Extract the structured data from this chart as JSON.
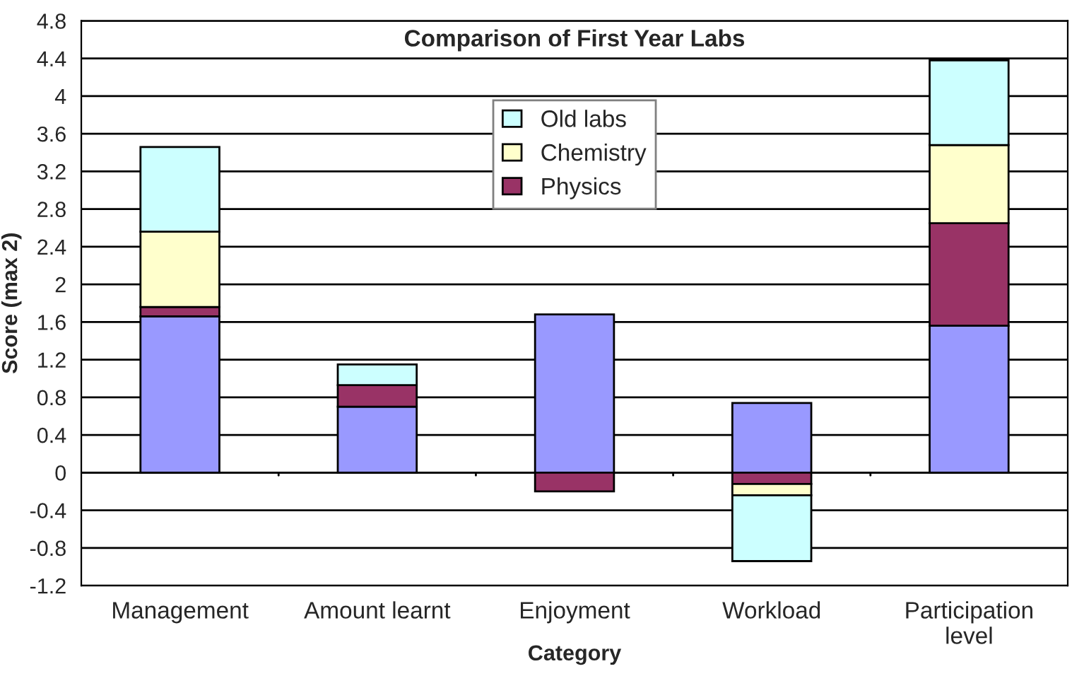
{
  "chart_data": {
    "type": "bar",
    "stacked": true,
    "title": "Comparison of First Year Labs",
    "xlabel": "Category",
    "ylabel": "Score (max 2)",
    "categories": [
      "Management",
      "Amount learnt",
      "Enjoyment",
      "Workload",
      "Participation\nlevel"
    ],
    "series": [
      {
        "color": "#9999ff",
        "values": [
          1.66,
          0.7,
          1.68,
          0.74,
          1.56
        ]
      },
      {
        "name": "Physics",
        "color": "#993366",
        "values": [
          0.1,
          0.23,
          -0.2,
          -0.12,
          1.09
        ]
      },
      {
        "name": "Chemistry",
        "color": "#ffffcc",
        "values": [
          0.8,
          0.0,
          0.0,
          -0.12,
          0.83
        ]
      },
      {
        "name": "Old labs",
        "color": "#ccffff",
        "values": [
          0.9,
          0.22,
          0.0,
          -0.7,
          0.9
        ]
      }
    ],
    "ylim": [
      -1.2,
      4.8
    ],
    "yticks": [
      -1.2,
      -0.8,
      -0.4,
      0,
      0.4,
      0.8,
      1.2,
      1.6,
      2,
      2.4,
      2.8,
      3.2,
      3.6,
      4,
      4.4,
      4.8
    ],
    "grid": "y",
    "legend": "top"
  }
}
